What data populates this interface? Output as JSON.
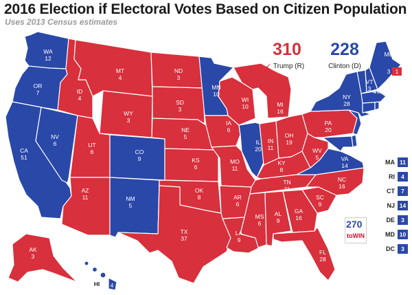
{
  "header": {
    "title": "2016 Election if Electoral Votes Based on Citizen Population",
    "subtitle": "Uses 2013 Census estimates"
  },
  "colors": {
    "republican": "#d8303c",
    "democrat": "#2a48a8"
  },
  "totals": {
    "trump": {
      "value": "310",
      "label": "Trump (R)",
      "check": "✓"
    },
    "clinton": {
      "value": "228",
      "label": "Clinton (D)"
    }
  },
  "states": {
    "WA": {
      "ab": "WA",
      "ev": "12"
    },
    "OR": {
      "ab": "OR",
      "ev": "7"
    },
    "CA": {
      "ab": "CA",
      "ev": "51"
    },
    "NV": {
      "ab": "NV",
      "ev": "6"
    },
    "ID": {
      "ab": "ID",
      "ev": "4"
    },
    "MT": {
      "ab": "MT",
      "ev": "4"
    },
    "WY": {
      "ab": "WY",
      "ev": "3"
    },
    "UT": {
      "ab": "UT",
      "ev": "6"
    },
    "AZ": {
      "ab": "AZ",
      "ev": "11"
    },
    "CO": {
      "ab": "CO",
      "ev": "9"
    },
    "NM": {
      "ab": "NM",
      "ev": "5"
    },
    "ND": {
      "ab": "ND",
      "ev": "3"
    },
    "SD": {
      "ab": "SD",
      "ev": "3"
    },
    "NE": {
      "ab": "NE",
      "ev": "5"
    },
    "KS": {
      "ab": "KS",
      "ev": "6"
    },
    "OK": {
      "ab": "OK",
      "ev": "8"
    },
    "TX": {
      "ab": "TX",
      "ev": "37"
    },
    "MN": {
      "ab": "MN",
      "ev": "10"
    },
    "IA": {
      "ab": "IA",
      "ev": "6"
    },
    "MO": {
      "ab": "MO",
      "ev": "11"
    },
    "AR": {
      "ab": "AR",
      "ev": "6"
    },
    "LA": {
      "ab": "LA",
      "ev": "9"
    },
    "WI": {
      "ab": "WI",
      "ev": "10"
    },
    "IL": {
      "ab": "IL",
      "ev": "20"
    },
    "MI": {
      "ab": "MI",
      "ev": "16"
    },
    "IN": {
      "ab": "IN",
      "ev": "11"
    },
    "OH": {
      "ab": "OH",
      "ev": "19"
    },
    "KY": {
      "ab": "KY",
      "ev": "8"
    },
    "TN": {
      "ab": "TN",
      "ev": "11"
    },
    "MS": {
      "ab": "MS",
      "ev": "6"
    },
    "AL": {
      "ab": "AL",
      "ev": "9"
    },
    "GA": {
      "ab": "GA",
      "ev": "16"
    },
    "FL": {
      "ab": "FL",
      "ev": "28"
    },
    "SC": {
      "ab": "SC",
      "ev": "9"
    },
    "NC": {
      "ab": "NC",
      "ev": "16"
    },
    "VA": {
      "ab": "VA",
      "ev": "14"
    },
    "WV": {
      "ab": "WV",
      "ev": "5"
    },
    "PA": {
      "ab": "PA",
      "ev": "20"
    },
    "NY": {
      "ab": "NY",
      "ev": "28"
    },
    "VT": {
      "ab": "VT",
      "ev": "3"
    },
    "NH": {
      "ab": "NH",
      "ev": "4"
    },
    "ME": {
      "ab": "ME",
      "ev": "3"
    },
    "ME2": {
      "ev": "1"
    },
    "AK": {
      "ab": "AK",
      "ev": "3"
    },
    "HI": {
      "ab": "HI",
      "ev": "4"
    }
  },
  "small_states": [
    {
      "ab": "MA",
      "ev": "11"
    },
    {
      "ab": "RI",
      "ev": "4"
    },
    {
      "ab": "CT",
      "ev": "7"
    },
    {
      "ab": "NJ",
      "ev": "14"
    },
    {
      "ab": "DE",
      "ev": "3"
    },
    {
      "ab": "MD",
      "ev": "10"
    },
    {
      "ab": "DC",
      "ev": "3"
    }
  ],
  "logo": {
    "number": "270",
    "text": "toWIN"
  }
}
